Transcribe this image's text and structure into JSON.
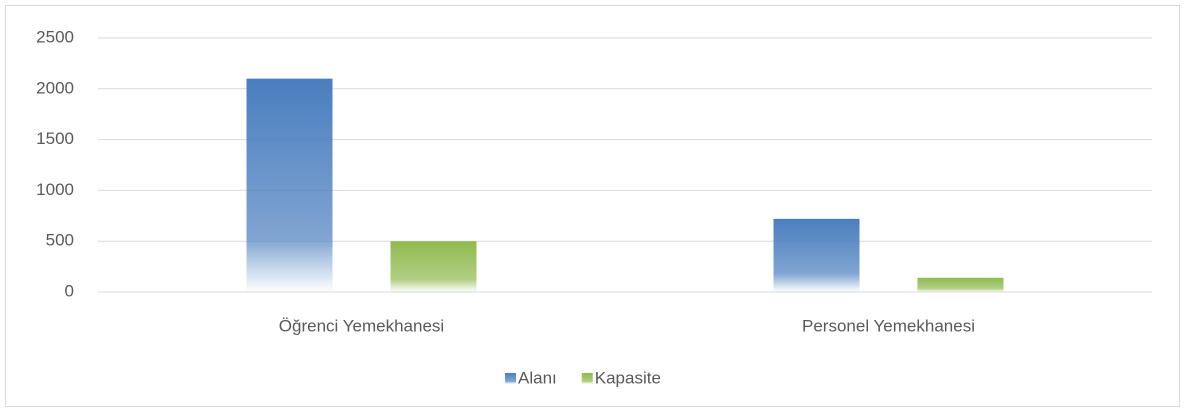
{
  "chart_data": {
    "type": "bar",
    "categories": [
      "Öğrenci Yemekhanesi",
      "Personel Yemekhanesi"
    ],
    "series": [
      {
        "name": "Alanı",
        "color": "#4a7ebf",
        "values": [
          2100,
          720
        ]
      },
      {
        "name": "Kapasite",
        "color": "#8fba4e",
        "values": [
          500,
          140
        ]
      }
    ],
    "ylim": [
      0,
      2500
    ],
    "yticks": [
      0,
      500,
      1000,
      1500,
      2000,
      2500
    ],
    "grid": true,
    "legend": "bottom"
  }
}
